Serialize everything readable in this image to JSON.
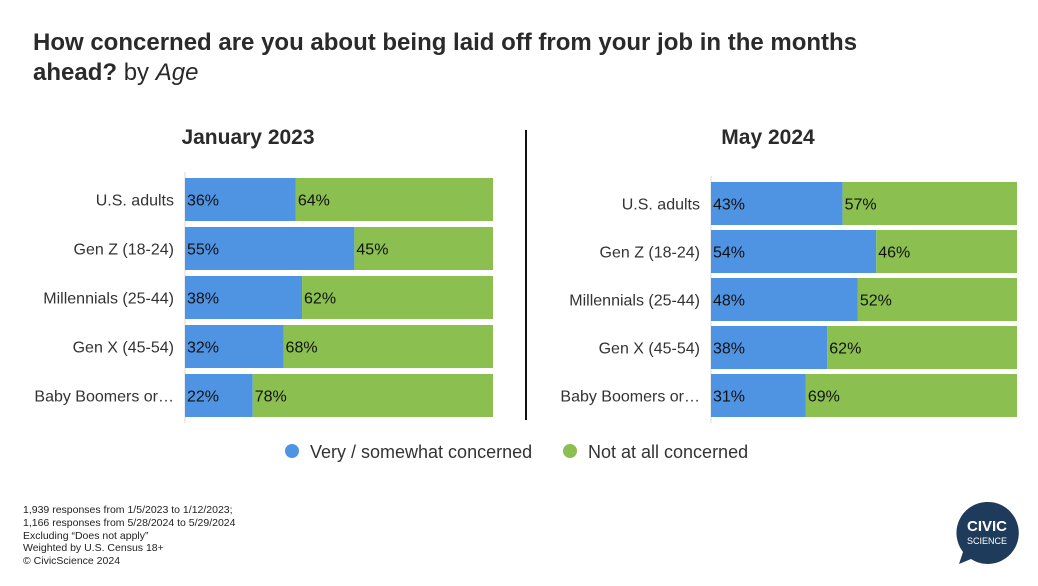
{
  "title": {
    "main": "How concerned are you about being laid off from your job in the months ahead?",
    "by": "by",
    "segment": "Age"
  },
  "chart_data": {
    "type": "bar",
    "stacked": true,
    "orientation": "horizontal",
    "xlim": [
      0,
      100
    ],
    "grid": false,
    "legend_position": "bottom",
    "legend": [
      {
        "name": "Very / somewhat concerned",
        "color": "#4f94e3"
      },
      {
        "name": "Not at all concerned",
        "color": "#8bc050"
      }
    ],
    "panels": [
      {
        "title": "January 2023",
        "categories": [
          "U.S. adults",
          "Gen Z (18-24)",
          "Millennials (25-44)",
          "Gen X (45-54)",
          "Baby Boomers or…"
        ],
        "series": [
          {
            "name": "Very / somewhat concerned",
            "values": [
              36,
              55,
              38,
              32,
              22
            ],
            "labels": [
              "36%",
              "55%",
              "38%",
              "32%",
              "22%"
            ]
          },
          {
            "name": "Not at all concerned",
            "values": [
              64,
              45,
              62,
              68,
              78
            ],
            "labels": [
              "64%",
              "45%",
              "62%",
              "68%",
              "78%"
            ]
          }
        ]
      },
      {
        "title": "May 2024",
        "categories": [
          "U.S. adults",
          "Gen Z (18-24)",
          "Millennials (25-44)",
          "Gen X (45-54)",
          "Baby Boomers or…"
        ],
        "series": [
          {
            "name": "Very / somewhat concerned",
            "values": [
              43,
              54,
              48,
              38,
              31
            ],
            "labels": [
              "43%",
              "54%",
              "48%",
              "38%",
              "31%"
            ]
          },
          {
            "name": "Not at all concerned",
            "values": [
              57,
              46,
              52,
              62,
              69
            ],
            "labels": [
              "57%",
              "46%",
              "52%",
              "62%",
              "69%"
            ]
          }
        ]
      }
    ]
  },
  "footnotes": [
    "1,939 responses from 1/5/2023 to 1/12/2023;",
    "1,166 responses from 5/28/2024 to 5/29/2024",
    "Excluding “Does not apply”",
    "Weighted by U.S. Census 18+",
    "© CivicScience 2024"
  ],
  "logo": {
    "line1": "CIVIC",
    "line2": "SCIENCE",
    "color": "#1f3b5c"
  }
}
